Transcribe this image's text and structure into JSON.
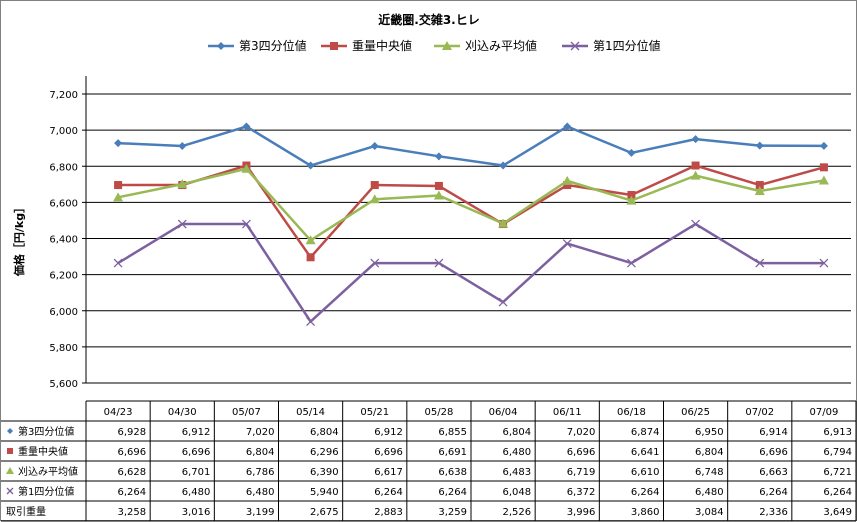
{
  "chart_data": {
    "type": "line",
    "title": "近畿圏.交雑3.ヒレ",
    "ylabel": "価格［円/kg］",
    "ylim": [
      5600,
      7200
    ],
    "yticks": [
      5600,
      5800,
      6000,
      6200,
      6400,
      6600,
      6800,
      7000,
      7200
    ],
    "ytick_labels": [
      "5,600",
      "5,800",
      "6,000",
      "6,200",
      "6,400",
      "6,600",
      "6,800",
      "7,000",
      "7,200"
    ],
    "grid": true,
    "legend_position": "top",
    "categories": [
      "04/23",
      "04/30",
      "05/07",
      "05/14",
      "05/21",
      "05/28",
      "06/04",
      "06/11",
      "06/18",
      "06/25",
      "07/02",
      "07/09"
    ],
    "series": [
      {
        "name": "第3四分位値",
        "color": "#4A7EBB",
        "marker": "diamond",
        "values": [
          6928,
          6912,
          7020,
          6804,
          6912,
          6855,
          6804,
          7020,
          6874,
          6950,
          6914,
          6913
        ],
        "labels": [
          "6,928",
          "6,912",
          "7,020",
          "6,804",
          "6,912",
          "6,855",
          "6,804",
          "7,020",
          "6,874",
          "6,950",
          "6,914",
          "6,913"
        ]
      },
      {
        "name": "重量中央値",
        "color": "#BE4B48",
        "marker": "square",
        "values": [
          6696,
          6696,
          6804,
          6296,
          6696,
          6691,
          6480,
          6696,
          6641,
          6804,
          6696,
          6794
        ],
        "labels": [
          "6,696",
          "6,696",
          "6,804",
          "6,296",
          "6,696",
          "6,691",
          "6,480",
          "6,696",
          "6,641",
          "6,804",
          "6,696",
          "6,794"
        ]
      },
      {
        "name": "刈込み平均値",
        "color": "#98B954",
        "marker": "triangle",
        "values": [
          6628,
          6701,
          6786,
          6390,
          6617,
          6638,
          6483,
          6719,
          6610,
          6748,
          6663,
          6721
        ],
        "labels": [
          "6,628",
          "6,701",
          "6,786",
          "6,390",
          "6,617",
          "6,638",
          "6,483",
          "6,719",
          "6,610",
          "6,748",
          "6,663",
          "6,721"
        ]
      },
      {
        "name": "第1四分位値",
        "color": "#7D60A0",
        "marker": "x",
        "values": [
          6264,
          6480,
          6480,
          5940,
          6264,
          6264,
          6048,
          6372,
          6264,
          6480,
          6264,
          6264
        ],
        "labels": [
          "6,264",
          "6,480",
          "6,480",
          "5,940",
          "6,264",
          "6,264",
          "6,048",
          "6,372",
          "6,264",
          "6,480",
          "6,264",
          "6,264"
        ]
      }
    ],
    "volume": {
      "name": "取引重量",
      "values": [
        3258,
        3016,
        3199,
        2675,
        2883,
        3259,
        2526,
        3996,
        3860,
        3084,
        2336,
        3649
      ],
      "labels": [
        "3,258",
        "3,016",
        "3,199",
        "2,675",
        "2,883",
        "3,259",
        "2,526",
        "3,996",
        "3,860",
        "3,084",
        "2,336",
        "3,649"
      ]
    }
  }
}
